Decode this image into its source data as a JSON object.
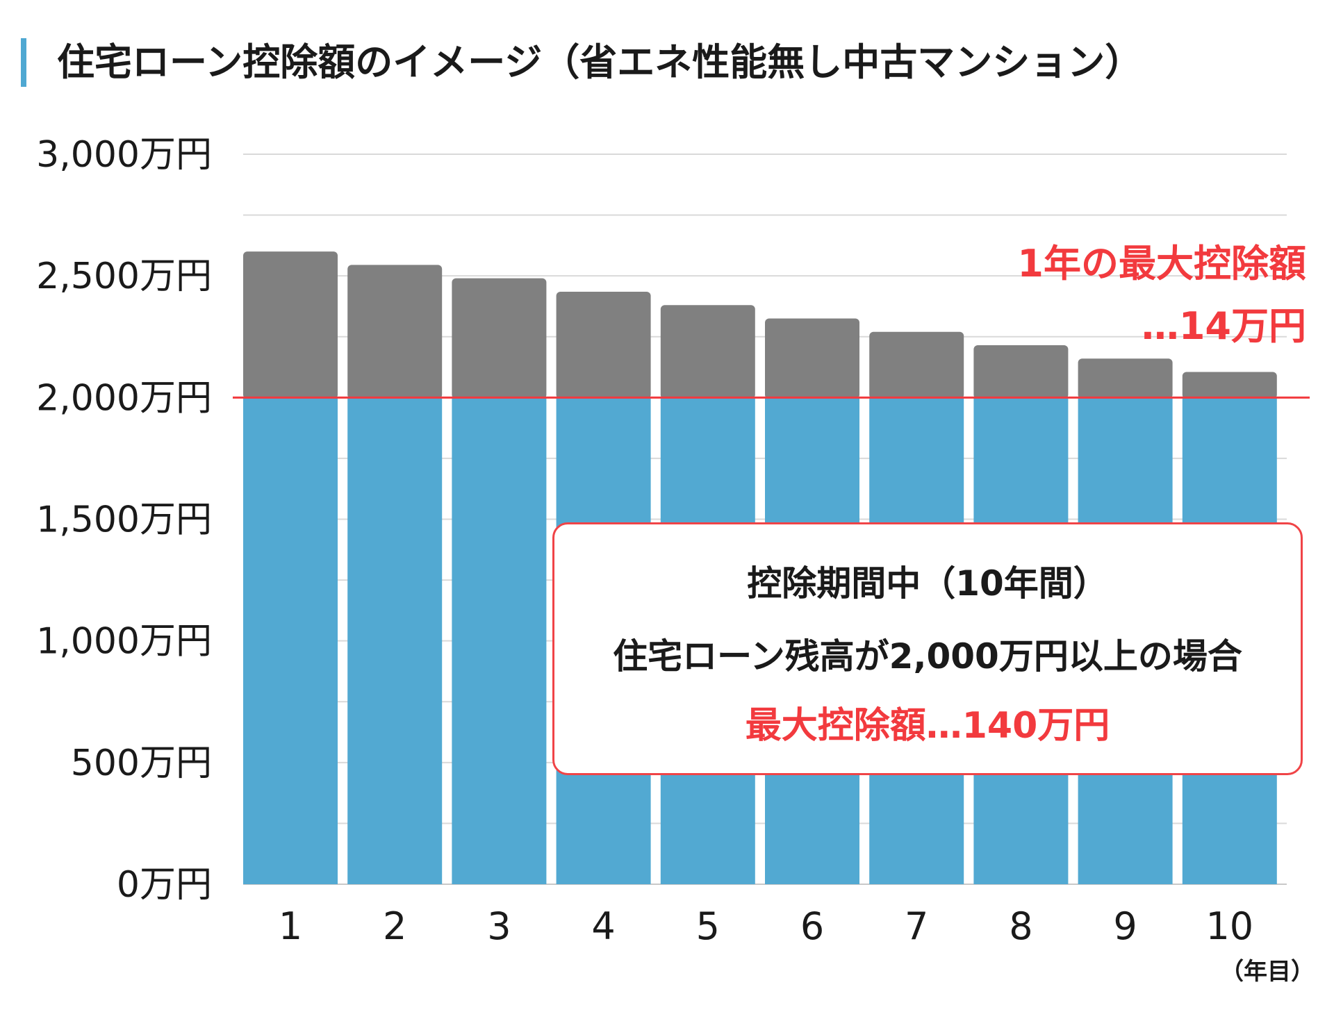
{
  "header": {
    "title": "住宅ローン控除額のイメージ（省エネ性能無し中古マンション）"
  },
  "colors": {
    "accent": "#4fa8d2",
    "bar_base": "#52a9d2",
    "bar_top": "#808080",
    "highlight": "#f23a3e",
    "grid": "#d9d9d9"
  },
  "annotation": {
    "line1": "1年の最大控除額",
    "line2": "…14万円"
  },
  "infobox": {
    "line1": "控除期間中（10年間）",
    "line2": "住宅ローン残高が2,000万円以上の場合",
    "line3": "最大控除額…140万円"
  },
  "chart_data": {
    "type": "bar",
    "stacked": true,
    "categories": [
      "1",
      "2",
      "3",
      "4",
      "5",
      "6",
      "7",
      "8",
      "9",
      "10"
    ],
    "values": [
      2600,
      2545,
      2490,
      2435,
      2380,
      2325,
      2270,
      2215,
      2160,
      2105
    ],
    "cap_value": 2000,
    "ylim": [
      0,
      3000
    ],
    "yticks": [
      0,
      500,
      1000,
      1500,
      2000,
      2500,
      3000
    ],
    "ytick_labels": [
      "0万円",
      "500万円",
      "1,000万円",
      "1,500万円",
      "2,000万円",
      "2,500万円",
      "3,000万円"
    ],
    "x_unit_label": "（年目）",
    "grid": true,
    "legend": "none"
  }
}
